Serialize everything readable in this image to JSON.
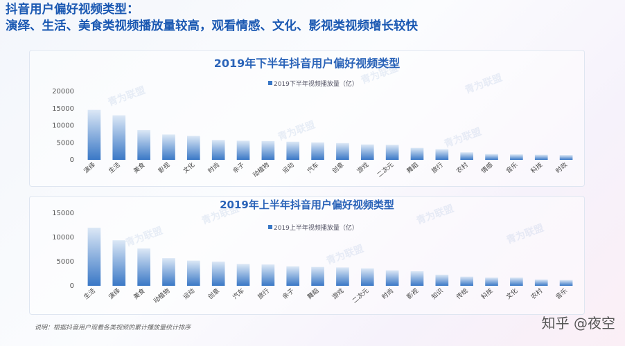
{
  "headline": {
    "line1": "抖音用户偏好视频类型：",
    "line2": "演绎、生活、美食类视频播放量较高，观看情感、文化、影视类视频增长较快"
  },
  "watermark": "青为联盟",
  "note": "说明：根据抖音用户观看各类视频的累计播放量统计排序",
  "brand": "知乎 @夜空",
  "colors": {
    "headline": "#1a58b2",
    "bar_top": "#dce8f6",
    "bar_bottom": "#3a78c6"
  },
  "chart_data": [
    {
      "type": "bar",
      "title": "2019年下半年抖音用户偏好视频类型",
      "categories": [
        "演绎",
        "生活",
        "美食",
        "影视",
        "文化",
        "时尚",
        "亲子",
        "动植物",
        "运动",
        "汽车",
        "创意",
        "游戏",
        "二次元",
        "舞蹈",
        "旅行",
        "农村",
        "情感",
        "音乐",
        "科技",
        "时政"
      ],
      "series": [
        {
          "name": "2019下半年视频播放量（亿）",
          "values": [
            14600,
            13000,
            8700,
            7400,
            7000,
            5800,
            5600,
            5500,
            5300,
            5100,
            4900,
            4500,
            4400,
            3500,
            3100,
            2200,
            1700,
            1600,
            1500,
            1400
          ]
        }
      ],
      "ylim": [
        0,
        20000
      ],
      "yticks": [
        0,
        5000,
        10000,
        15000,
        20000
      ],
      "legend": "top-center",
      "grid": false
    },
    {
      "type": "bar",
      "title": "2019年上半年抖音用户偏好视频类型",
      "categories": [
        "生活",
        "演绎",
        "美食",
        "动植物",
        "运动",
        "创意",
        "汽车",
        "旅行",
        "亲子",
        "舞蹈",
        "游戏",
        "二次元",
        "时尚",
        "影视",
        "知识",
        "传统",
        "科技",
        "文化",
        "农村",
        "音乐"
      ],
      "series": [
        {
          "name": "2019上半年视频播放量（亿）",
          "values": [
            12000,
            9400,
            7700,
            5700,
            5200,
            5000,
            4500,
            4400,
            4000,
            3900,
            3800,
            3600,
            3200,
            3000,
            2300,
            1900,
            1700,
            1700,
            1300,
            1200
          ]
        }
      ],
      "ylim": [
        0,
        15000
      ],
      "yticks": [
        0,
        5000,
        10000,
        15000
      ],
      "legend": "top-center",
      "grid": false
    }
  ]
}
